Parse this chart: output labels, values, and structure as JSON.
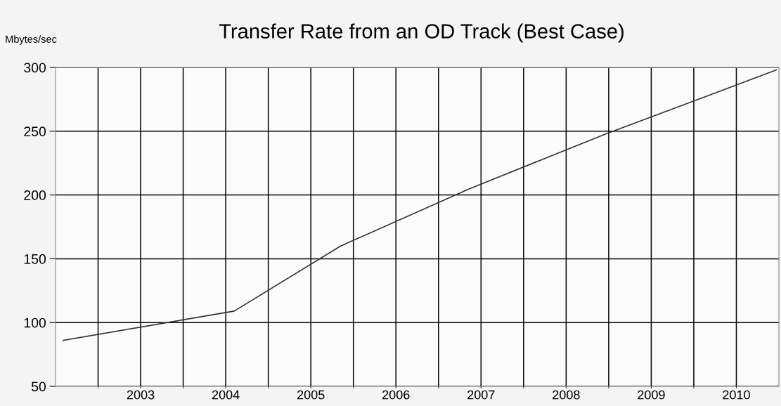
{
  "chart_data": {
    "type": "line",
    "title": "Transfer Rate from an OD Track (Best Case)",
    "ylabel": "Mbytes/sec",
    "x": [
      2002.59,
      2004.6,
      2005.85,
      2007.35,
      2008.97,
      2010.97
    ],
    "series": [
      {
        "color": "#333333",
        "values": [
          86,
          109,
          160,
          204.5,
          248,
          298
        ]
      }
    ],
    "xlim": [
      2002.5,
      2011
    ],
    "ylim": [
      50,
      300
    ],
    "yticks": [
      50,
      100,
      150,
      200,
      250,
      300
    ],
    "xticks": [
      {
        "value": 2003,
        "label": null
      },
      {
        "value": 2003.5,
        "label": "2003"
      },
      {
        "value": 2004,
        "label": null
      },
      {
        "value": 2004.5,
        "label": "2004"
      },
      {
        "value": 2005,
        "label": null
      },
      {
        "value": 2005.5,
        "label": "2005"
      },
      {
        "value": 2006,
        "label": null
      },
      {
        "value": 2006.5,
        "label": "2006"
      },
      {
        "value": 2007,
        "label": null
      },
      {
        "value": 2007.5,
        "label": "2007"
      },
      {
        "value": 2008,
        "label": null
      },
      {
        "value": 2008.5,
        "label": "2008"
      },
      {
        "value": 2009,
        "label": null
      },
      {
        "value": 2009.5,
        "label": "2009"
      },
      {
        "value": 2010,
        "label": null
      },
      {
        "value": 2010.5,
        "label": "2010"
      }
    ],
    "grid": true,
    "marker": "none",
    "line_style": "solid",
    "legend": false
  }
}
